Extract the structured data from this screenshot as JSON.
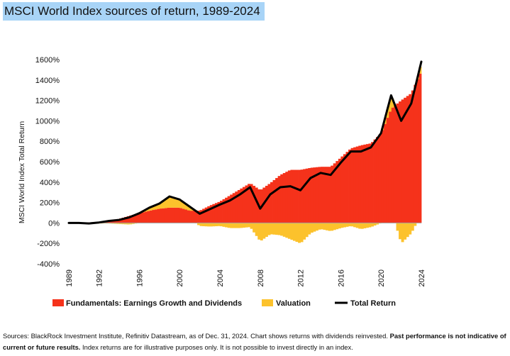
{
  "title": "MSCI World Index sources of return, 1989-2024",
  "footer": {
    "sources": "Sources: BlackRock Investment Institute, Refinitiv Datastream, as of Dec. 31, 2024. Chart shows returns with dividends reinvested.",
    "warning": "Past performance is not indicative of current or future results.",
    "disclaimer": "Index returns are for illustrative purposes only. It is not possible to invest directly in an index."
  },
  "colors": {
    "fundamentals": "#f5321b",
    "valuation": "#fcc22c",
    "total_return": "#000000",
    "zero_line": "#9e9e9e"
  },
  "chart_data": {
    "type": "bar",
    "subtype": "stacked bar with line overlay",
    "ylabel": "MSCI World Index Total Return",
    "xlabel": "",
    "ylim": [
      -400,
      1600
    ],
    "y_ticks": [
      "-400%",
      "-200%",
      "0%",
      "200%",
      "400%",
      "600%",
      "800%",
      "1000%",
      "1200%",
      "1400%",
      "1600%"
    ],
    "y_tick_values": [
      -400,
      -200,
      0,
      200,
      400,
      600,
      800,
      1000,
      1200,
      1400,
      1600
    ],
    "xlim": [
      1989,
      2024
    ],
    "x_ticks": [
      "1989",
      "1992",
      "1996",
      "2000",
      "2004",
      "2008",
      "2012",
      "2016",
      "2020",
      "2024"
    ],
    "x_tick_values": [
      1989,
      1992,
      1996,
      2000,
      2004,
      2008,
      2012,
      2016,
      2020,
      2024
    ],
    "legend_position": "bottom",
    "legend": [
      {
        "key": "fundamentals",
        "label": "Fundamentals: Earnings Growth and Dividends"
      },
      {
        "key": "valuation",
        "label": "Valuation"
      },
      {
        "key": "total_return",
        "label": "Total Return"
      }
    ],
    "series_years": [
      1989,
      1990,
      1991,
      1992,
      1993,
      1994,
      1995,
      1996,
      1997,
      1998,
      1999,
      2000,
      2001,
      2002,
      2003,
      2004,
      2005,
      2006,
      2007,
      2008,
      2009,
      2010,
      2011,
      2012,
      2013,
      2014,
      2015,
      2016,
      2017,
      2018,
      2019,
      2020,
      2021,
      2022,
      2023,
      2024
    ],
    "fundamentals": [
      0,
      5,
      5,
      10,
      25,
      40,
      70,
      95,
      120,
      140,
      150,
      150,
      120,
      120,
      170,
      210,
      270,
      330,
      390,
      320,
      390,
      470,
      520,
      520,
      540,
      550,
      550,
      640,
      730,
      760,
      780,
      880,
      1120,
      1200,
      1270,
      1490
    ],
    "valuation": [
      0,
      -5,
      -10,
      -5,
      -5,
      -10,
      -15,
      0,
      30,
      50,
      110,
      80,
      40,
      -30,
      -35,
      -30,
      -50,
      -50,
      -40,
      -180,
      -110,
      -120,
      -160,
      -200,
      -100,
      -60,
      -80,
      -50,
      -30,
      -60,
      -40,
      0,
      130,
      -200,
      -100,
      90
    ],
    "total_return": [
      0,
      0,
      -5,
      5,
      20,
      30,
      55,
      95,
      150,
      190,
      260,
      230,
      160,
      90,
      135,
      180,
      220,
      280,
      350,
      140,
      280,
      350,
      360,
      320,
      440,
      490,
      470,
      590,
      700,
      700,
      740,
      880,
      1250,
      1000,
      1170,
      1580
    ]
  }
}
